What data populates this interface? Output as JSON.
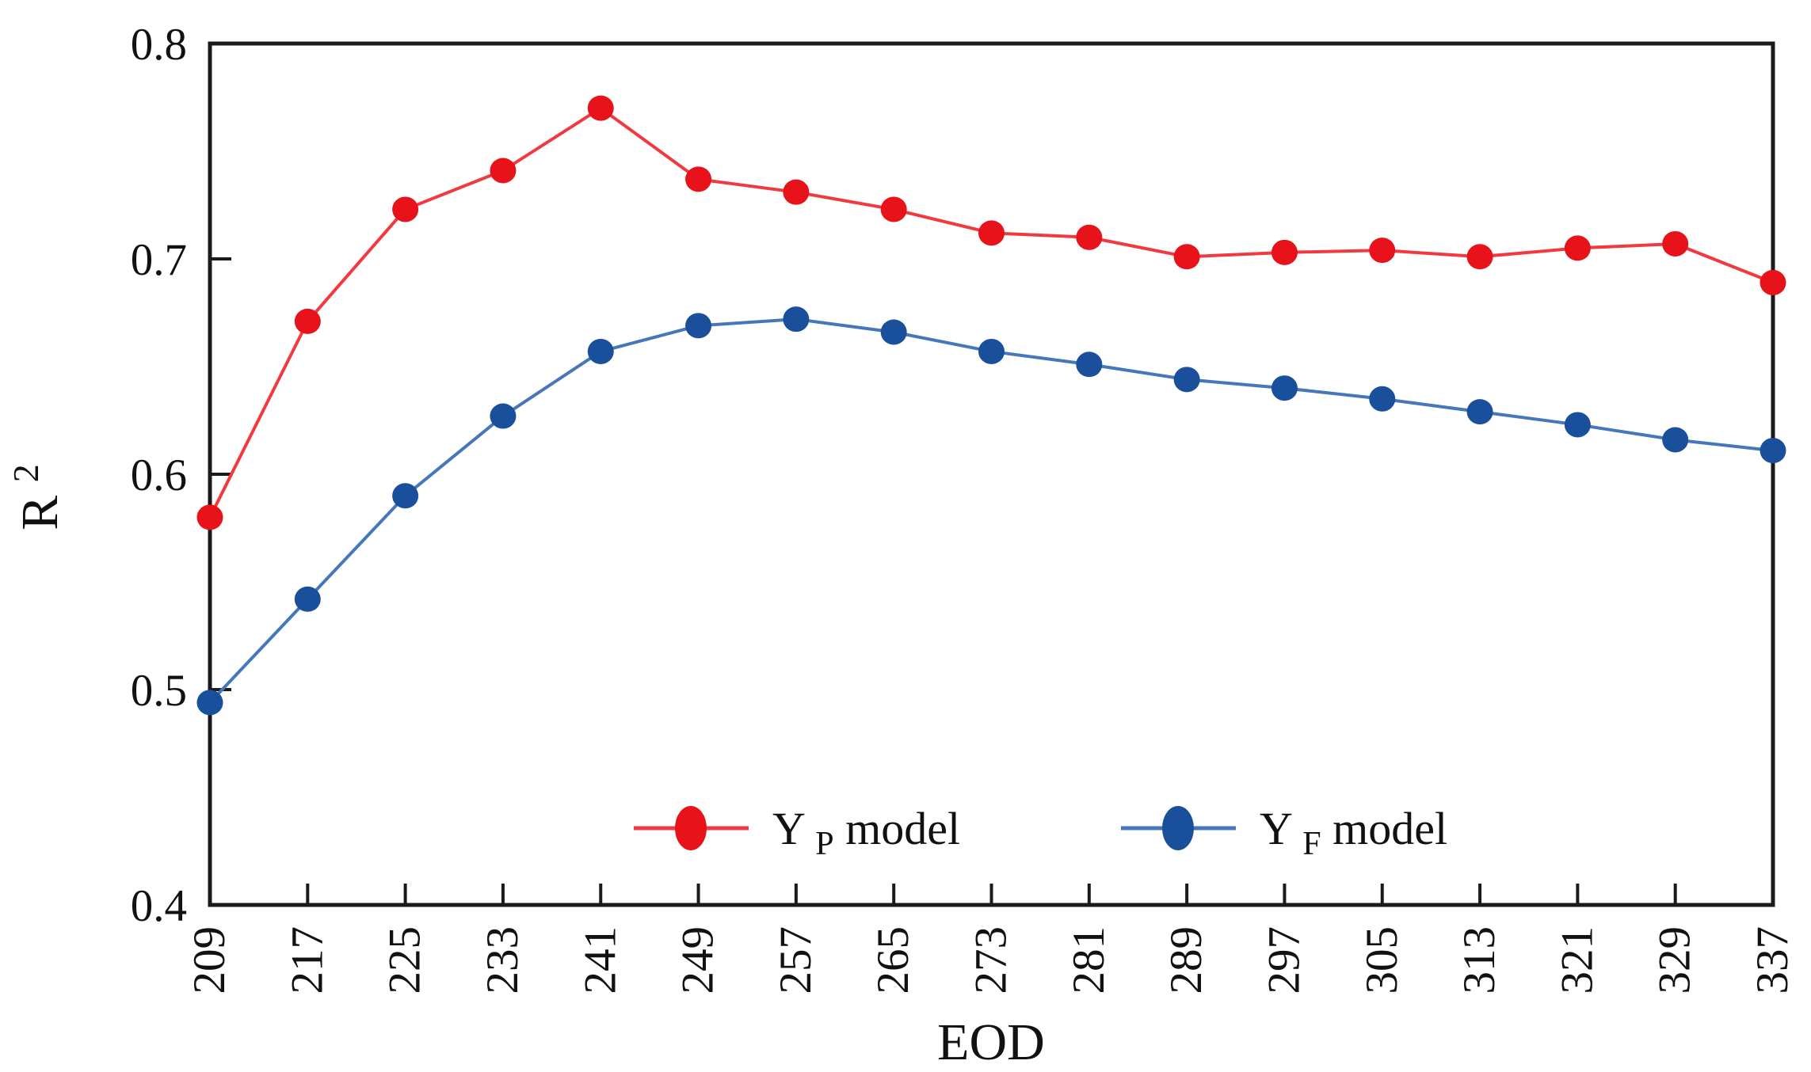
{
  "chart_data": {
    "type": "line",
    "title": "",
    "xlabel": "EOD",
    "ylabel": "R2",
    "ylabel_parts": {
      "base": "R",
      "sup": "2"
    },
    "x": [
      209,
      217,
      225,
      233,
      241,
      249,
      257,
      265,
      273,
      281,
      289,
      297,
      305,
      313,
      321,
      329,
      337
    ],
    "x_tick_labels": [
      "209",
      "217",
      "225",
      "233",
      "241",
      "249",
      "257",
      "265",
      "273",
      "281",
      "289",
      "297",
      "305",
      "313",
      "321",
      "329",
      "337"
    ],
    "ylim": [
      0.4,
      0.8
    ],
    "yticks": [
      "0.8",
      "0.7",
      "0.6",
      "0.5",
      "0.4"
    ],
    "grid": false,
    "legend_position": "inside-bottom-center",
    "axis_color": "#1a1a1a",
    "series": [
      {
        "name": "YP model",
        "label": {
          "base": "Y",
          "sub": "P",
          "rest": " model"
        },
        "line_color": "#f03a40",
        "marker_color": "#e8121a",
        "values": [
          0.58,
          0.671,
          0.723,
          0.741,
          0.77,
          0.737,
          0.731,
          0.723,
          0.712,
          0.71,
          0.701,
          0.703,
          0.704,
          0.701,
          0.705,
          0.707,
          0.689
        ]
      },
      {
        "name": "YF model",
        "label": {
          "base": "Y",
          "sub": "F",
          "rest": " model"
        },
        "line_color": "#4577ba",
        "marker_color": "#1a4f9c",
        "values": [
          0.494,
          0.542,
          0.59,
          0.627,
          0.657,
          0.669,
          0.672,
          0.666,
          0.657,
          0.651,
          0.644,
          0.64,
          0.635,
          0.629,
          0.623,
          0.616,
          0.611
        ]
      }
    ]
  }
}
